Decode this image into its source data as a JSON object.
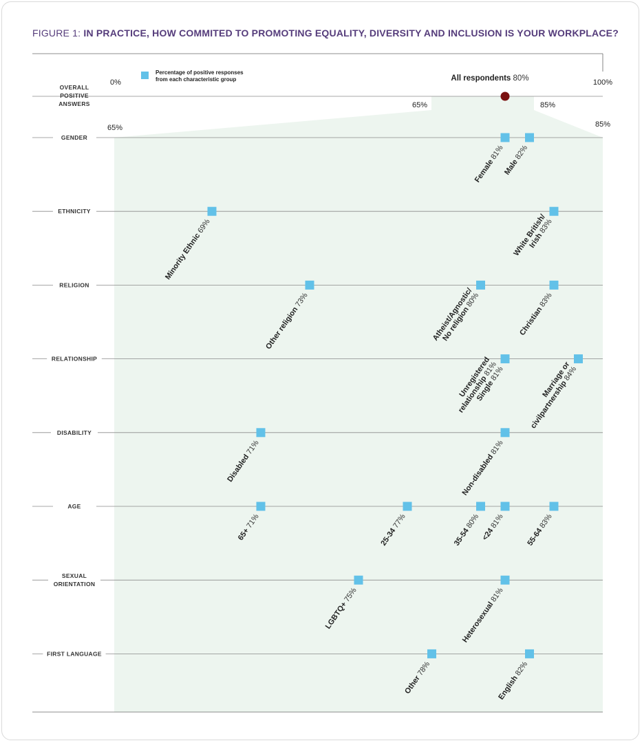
{
  "title": {
    "prefix": "FIGURE 1: ",
    "main": "IN PRACTICE, HOW COMMITED TO PROMOTING EQUALITY, DIVERSITY AND INCLUSION IS YOUR WORKPLACE?"
  },
  "colors": {
    "title": "#553c7b",
    "marker": "#62c1e8",
    "overall_marker": "#7a1010",
    "zoom_fill": "#edf5ef",
    "gridline": "#8a8a8a"
  },
  "chart_data": {
    "type": "scatter",
    "title": "IN PRACTICE, HOW COMMITED TO PROMOTING EQUALITY, DIVERSITY AND INCLUSION IS YOUR WORKPLACE?",
    "legend": {
      "line1": "Percentage of positive responses",
      "line2": "from each characteristic group",
      "placement": "top-left"
    },
    "overall": {
      "category_lines": [
        "OVERALL",
        "POSITIVE",
        "ANSWERS"
      ],
      "axis_range": [
        0,
        100
      ],
      "axis_min_label": "0%",
      "axis_max_label": "100%",
      "label": "All respondents",
      "value_label": "80%",
      "value": 80,
      "zoom_min_label": "65%",
      "zoom_max_label": "85%"
    },
    "zoom_axis": {
      "range": [
        65,
        85
      ],
      "min_label": "65%",
      "max_label": "85%"
    },
    "groups": [
      {
        "category_lines": [
          "GENDER"
        ],
        "points": [
          {
            "value": 81,
            "lines": [
              {
                "name": "Female",
                "val": "81%"
              }
            ]
          },
          {
            "value": 82,
            "lines": [
              {
                "name": "Male",
                "val": "82%"
              }
            ]
          }
        ]
      },
      {
        "category_lines": [
          "ETHNICITY"
        ],
        "points": [
          {
            "value": 69,
            "lines": [
              {
                "name": "Minority Ethnic",
                "val": "69%"
              }
            ]
          },
          {
            "value": 83,
            "lines": [
              {
                "name": "White British/",
                "val": ""
              },
              {
                "name": "Irish",
                "val": "83%"
              }
            ]
          }
        ]
      },
      {
        "category_lines": [
          "RELIGION"
        ],
        "points": [
          {
            "value": 73,
            "lines": [
              {
                "name": "Other religion",
                "val": "73%"
              }
            ]
          },
          {
            "value": 80,
            "lines": [
              {
                "name": "Atheist/Agnostic/",
                "val": ""
              },
              {
                "name": "No religion",
                "val": "80%"
              }
            ]
          },
          {
            "value": 83,
            "lines": [
              {
                "name": "Christian",
                "val": "83%"
              }
            ]
          }
        ]
      },
      {
        "category_lines": [
          "RELATIONSHIP"
        ],
        "points": [
          {
            "value": 81,
            "lines": [
              {
                "name": "Unregistered",
                "val": ""
              },
              {
                "name": "relationship",
                "val": "81%"
              },
              {
                "name": "Single",
                "val": "81%"
              }
            ]
          },
          {
            "value": 84,
            "lines": [
              {
                "name": "Marriage or",
                "val": ""
              },
              {
                "name": "civilpartnership",
                "val": "84%"
              }
            ]
          }
        ]
      },
      {
        "category_lines": [
          "DISABILITY"
        ],
        "points": [
          {
            "value": 71,
            "lines": [
              {
                "name": "Disabled",
                "val": "71%"
              }
            ]
          },
          {
            "value": 81,
            "lines": [
              {
                "name": "Non-disabled",
                "val": "81%"
              }
            ]
          }
        ]
      },
      {
        "category_lines": [
          "AGE"
        ],
        "points": [
          {
            "value": 71,
            "lines": [
              {
                "name": "65+",
                "val": "71%"
              }
            ]
          },
          {
            "value": 77,
            "lines": [
              {
                "name": "25-34",
                "val": "77%"
              }
            ]
          },
          {
            "value": 80,
            "lines": [
              {
                "name": "35-54",
                "val": "80%"
              }
            ]
          },
          {
            "value": 81,
            "lines": [
              {
                "name": "<24",
                "val": "81%"
              }
            ]
          },
          {
            "value": 83,
            "lines": [
              {
                "name": "55-64",
                "val": "83%"
              }
            ]
          }
        ]
      },
      {
        "category_lines": [
          "SEXUAL",
          "ORIENTATION"
        ],
        "points": [
          {
            "value": 75,
            "lines": [
              {
                "name": "LGBTQ+",
                "val": "75%"
              }
            ]
          },
          {
            "value": 81,
            "lines": [
              {
                "name": "Heterosexual",
                "val": "81%"
              }
            ]
          }
        ]
      },
      {
        "category_lines": [
          "FIRST LANGUAGE"
        ],
        "points": [
          {
            "value": 78,
            "lines": [
              {
                "name": "Other",
                "val": "78%"
              }
            ]
          },
          {
            "value": 82,
            "lines": [
              {
                "name": "English",
                "val": "82%"
              }
            ]
          }
        ]
      }
    ]
  }
}
